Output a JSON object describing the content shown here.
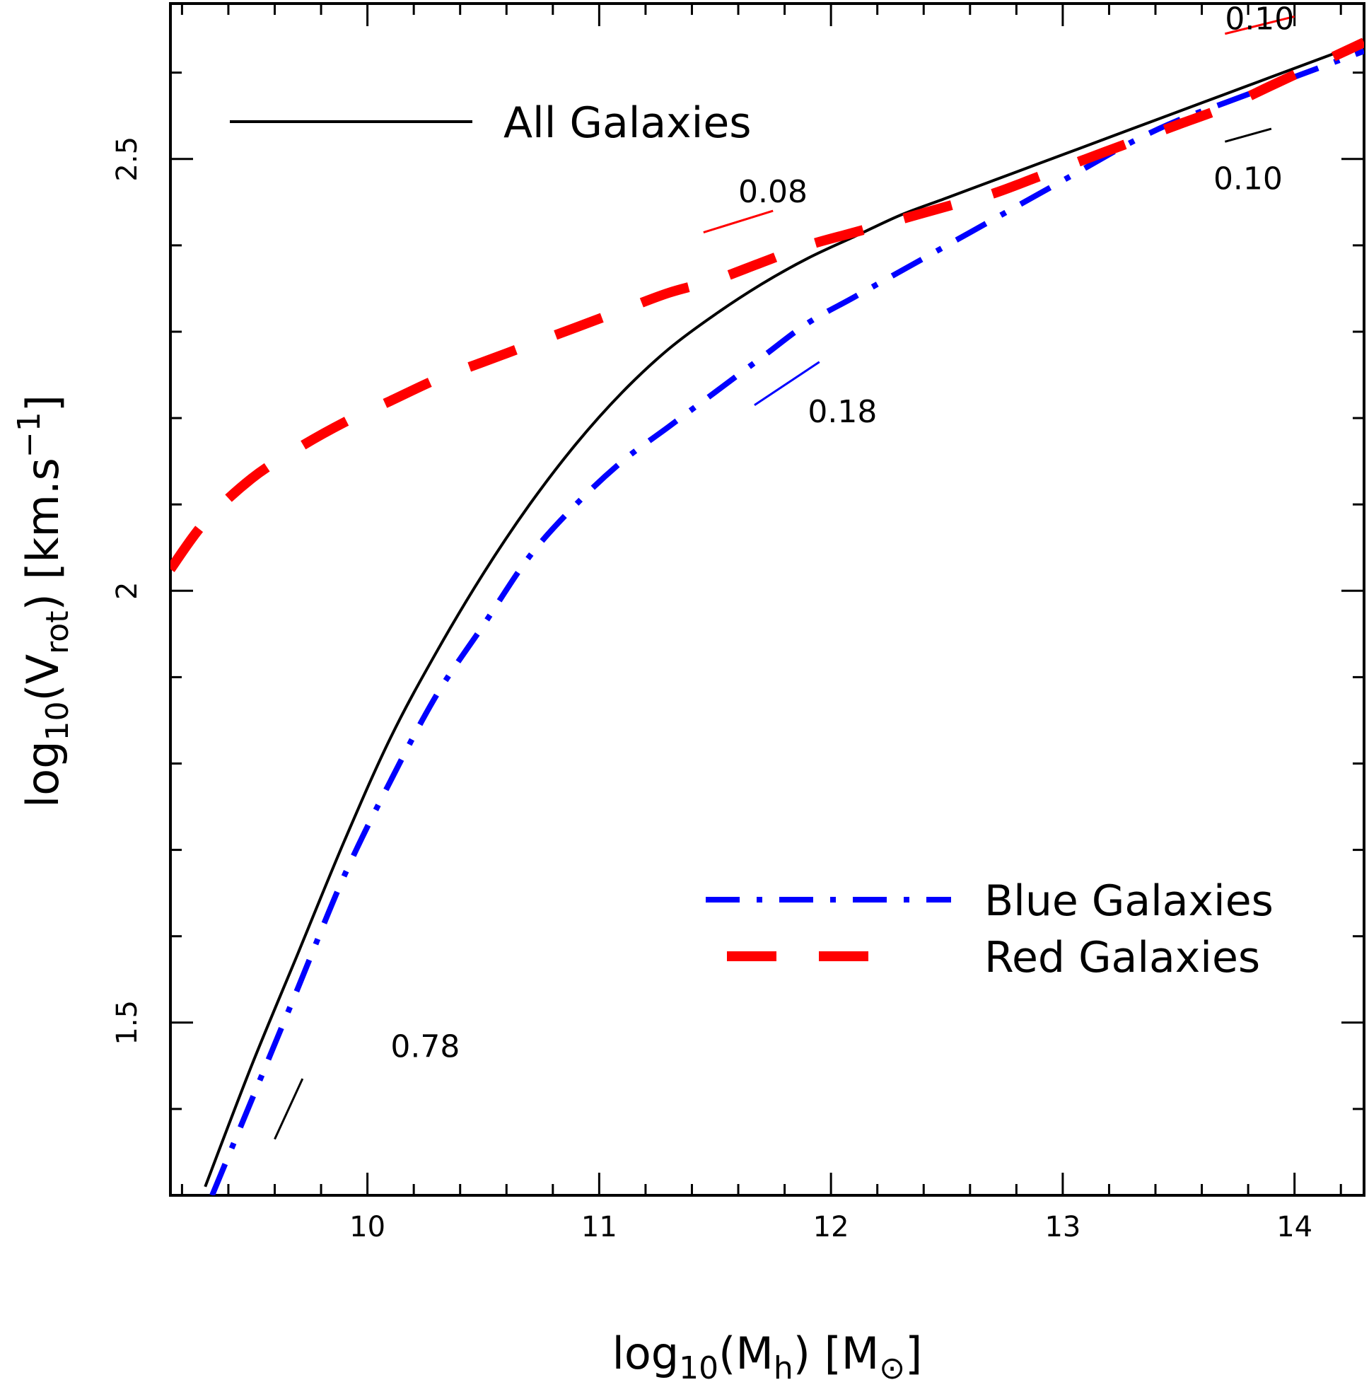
{
  "chart_data": {
    "type": "line",
    "xlabel": {
      "prefix": "log",
      "sub": "10",
      "mid": "(M",
      "sub2": "h",
      "suffix": ")  [M",
      "symbol": "⊙",
      "end": "]"
    },
    "ylabel": {
      "prefix": "log",
      "sub": "10",
      "mid": "(V",
      "sub2": "rot",
      "suffix": ")  [km.s",
      "sup": "−1",
      "end": "]"
    },
    "xlim": [
      9.15,
      14.3
    ],
    "ylim": [
      1.3,
      2.68
    ],
    "xticks_major": [
      10,
      11,
      12,
      13,
      14
    ],
    "xticks_major_labels": [
      "10",
      "11",
      "12",
      "13",
      "14"
    ],
    "xticks_minor": [
      9.2,
      9.4,
      9.6,
      9.8,
      10.2,
      10.4,
      10.6,
      10.8,
      11.2,
      11.4,
      11.6,
      11.8,
      12.2,
      12.4,
      12.6,
      12.8,
      13.2,
      13.4,
      13.6,
      13.8,
      14.2
    ],
    "yticks_major": [
      1.5,
      2.0,
      2.5
    ],
    "yticks_major_labels": [
      "1.5",
      "2",
      "2.5"
    ],
    "yticks_minor": [
      1.4,
      1.6,
      1.7,
      1.8,
      1.9,
      2.1,
      2.2,
      2.3,
      2.4,
      2.6
    ],
    "series": [
      {
        "name": "All Galaxies",
        "color": "#000000",
        "style": "solid",
        "x": [
          9.3,
          9.5,
          9.7,
          9.9,
          10.1,
          10.3,
          10.5,
          10.7,
          10.9,
          11.1,
          11.3,
          11.5,
          11.7,
          11.9,
          12.1,
          12.3,
          12.5,
          12.7,
          12.9,
          13.1,
          13.3,
          13.5,
          13.7,
          13.9,
          14.1,
          14.3
        ],
        "y": [
          1.31,
          1.45,
          1.58,
          1.71,
          1.83,
          1.93,
          2.02,
          2.1,
          2.17,
          2.23,
          2.28,
          2.32,
          2.355,
          2.385,
          2.41,
          2.435,
          2.455,
          2.475,
          2.495,
          2.515,
          2.535,
          2.555,
          2.575,
          2.595,
          2.615,
          2.635
        ]
      },
      {
        "name": "Blue Galaxies",
        "color": "#0000ff",
        "style": "dashdot",
        "x": [
          9.33,
          9.5,
          9.7,
          9.9,
          10.1,
          10.3,
          10.5,
          10.7,
          10.9,
          11.1,
          11.3,
          11.5,
          11.7,
          11.9,
          12.1,
          12.3,
          12.5,
          12.7,
          12.9,
          13.1,
          13.3,
          13.5,
          13.7,
          13.9,
          14.1,
          14.3
        ],
        "y": [
          1.3,
          1.41,
          1.54,
          1.67,
          1.78,
          1.88,
          1.96,
          2.04,
          2.1,
          2.15,
          2.19,
          2.23,
          2.27,
          2.31,
          2.34,
          2.37,
          2.4,
          2.43,
          2.46,
          2.49,
          2.52,
          2.545,
          2.565,
          2.585,
          2.605,
          2.625
        ]
      },
      {
        "name": "Red Galaxies",
        "color": "#ff0000",
        "style": "dashed",
        "x": [
          9.15,
          9.3,
          9.5,
          9.7,
          9.9,
          10.1,
          10.3,
          10.5,
          10.7,
          10.9,
          11.1,
          11.3,
          11.5,
          11.7,
          11.9,
          12.1,
          12.3,
          12.5,
          12.7,
          12.9,
          13.1,
          13.3,
          13.5,
          13.7,
          13.9,
          14.1,
          14.3
        ],
        "y": [
          2.025,
          2.08,
          2.13,
          2.165,
          2.195,
          2.22,
          2.245,
          2.265,
          2.285,
          2.305,
          2.325,
          2.345,
          2.36,
          2.38,
          2.4,
          2.415,
          2.43,
          2.445,
          2.46,
          2.48,
          2.5,
          2.52,
          2.54,
          2.56,
          2.585,
          2.61,
          2.635
        ]
      }
    ],
    "legend": [
      {
        "label": "All Galaxies",
        "color": "#000000",
        "style": "solid",
        "position": "top-left"
      },
      {
        "label": "Blue Galaxies",
        "color": "#0000ff",
        "style": "dashdot",
        "position": "bottom-right"
      },
      {
        "label": "Red Galaxies",
        "color": "#ff0000",
        "style": "dashed",
        "position": "bottom-right"
      }
    ],
    "annotations": [
      {
        "text": "0.78",
        "color": "#000000",
        "x": 10.1,
        "y": 1.46,
        "seg": [
          [
            9.6,
            1.365
          ],
          [
            9.72,
            1.435
          ]
        ]
      },
      {
        "text": "0.08",
        "color": "#ff0000",
        "x": 11.6,
        "y": 2.45,
        "seg": [
          [
            11.45,
            2.415
          ],
          [
            11.75,
            2.44
          ]
        ]
      },
      {
        "text": "0.18",
        "color": "#0000ff",
        "x": 11.9,
        "y": 2.195,
        "seg": [
          [
            11.67,
            2.215
          ],
          [
            11.95,
            2.265
          ]
        ]
      },
      {
        "text": "0.10",
        "color": "#ff0000",
        "x": 13.7,
        "y": 2.65,
        "seg": [
          [
            13.7,
            2.645
          ],
          [
            14.0,
            2.665
          ]
        ]
      },
      {
        "text": "0.10",
        "color": "#000000",
        "x": 13.65,
        "y": 2.465,
        "seg": [
          [
            13.7,
            2.52
          ],
          [
            13.9,
            2.535
          ]
        ]
      }
    ]
  }
}
